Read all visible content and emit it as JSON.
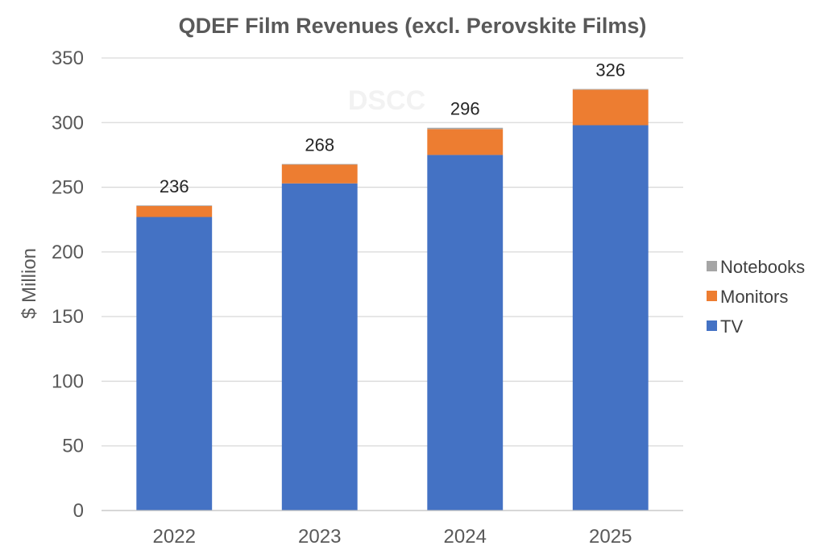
{
  "chart_data": {
    "type": "bar",
    "stacked": true,
    "title": "QDEF Film Revenues  (excl. Perovskite Films)",
    "ylabel": "$ Million",
    "xlabel": "",
    "categories": [
      "2022",
      "2023",
      "2024",
      "2025"
    ],
    "ylim": [
      0,
      350
    ],
    "yticks": [
      0,
      50,
      100,
      150,
      200,
      250,
      300,
      350
    ],
    "grid": true,
    "legend_position": "right",
    "series": [
      {
        "name": "TV",
        "color": "#4472C4",
        "values": [
          227,
          253,
          275,
          298
        ]
      },
      {
        "name": "Monitors",
        "color": "#ED7D31",
        "values": [
          8.5,
          14.5,
          20,
          27.5
        ]
      },
      {
        "name": "Notebooks",
        "color": "#A5A5A5",
        "values": [
          0.5,
          0.5,
          1,
          0.5
        ]
      }
    ],
    "totals": [
      "236",
      "268",
      "296",
      "326"
    ],
    "watermark": "DSCC"
  }
}
